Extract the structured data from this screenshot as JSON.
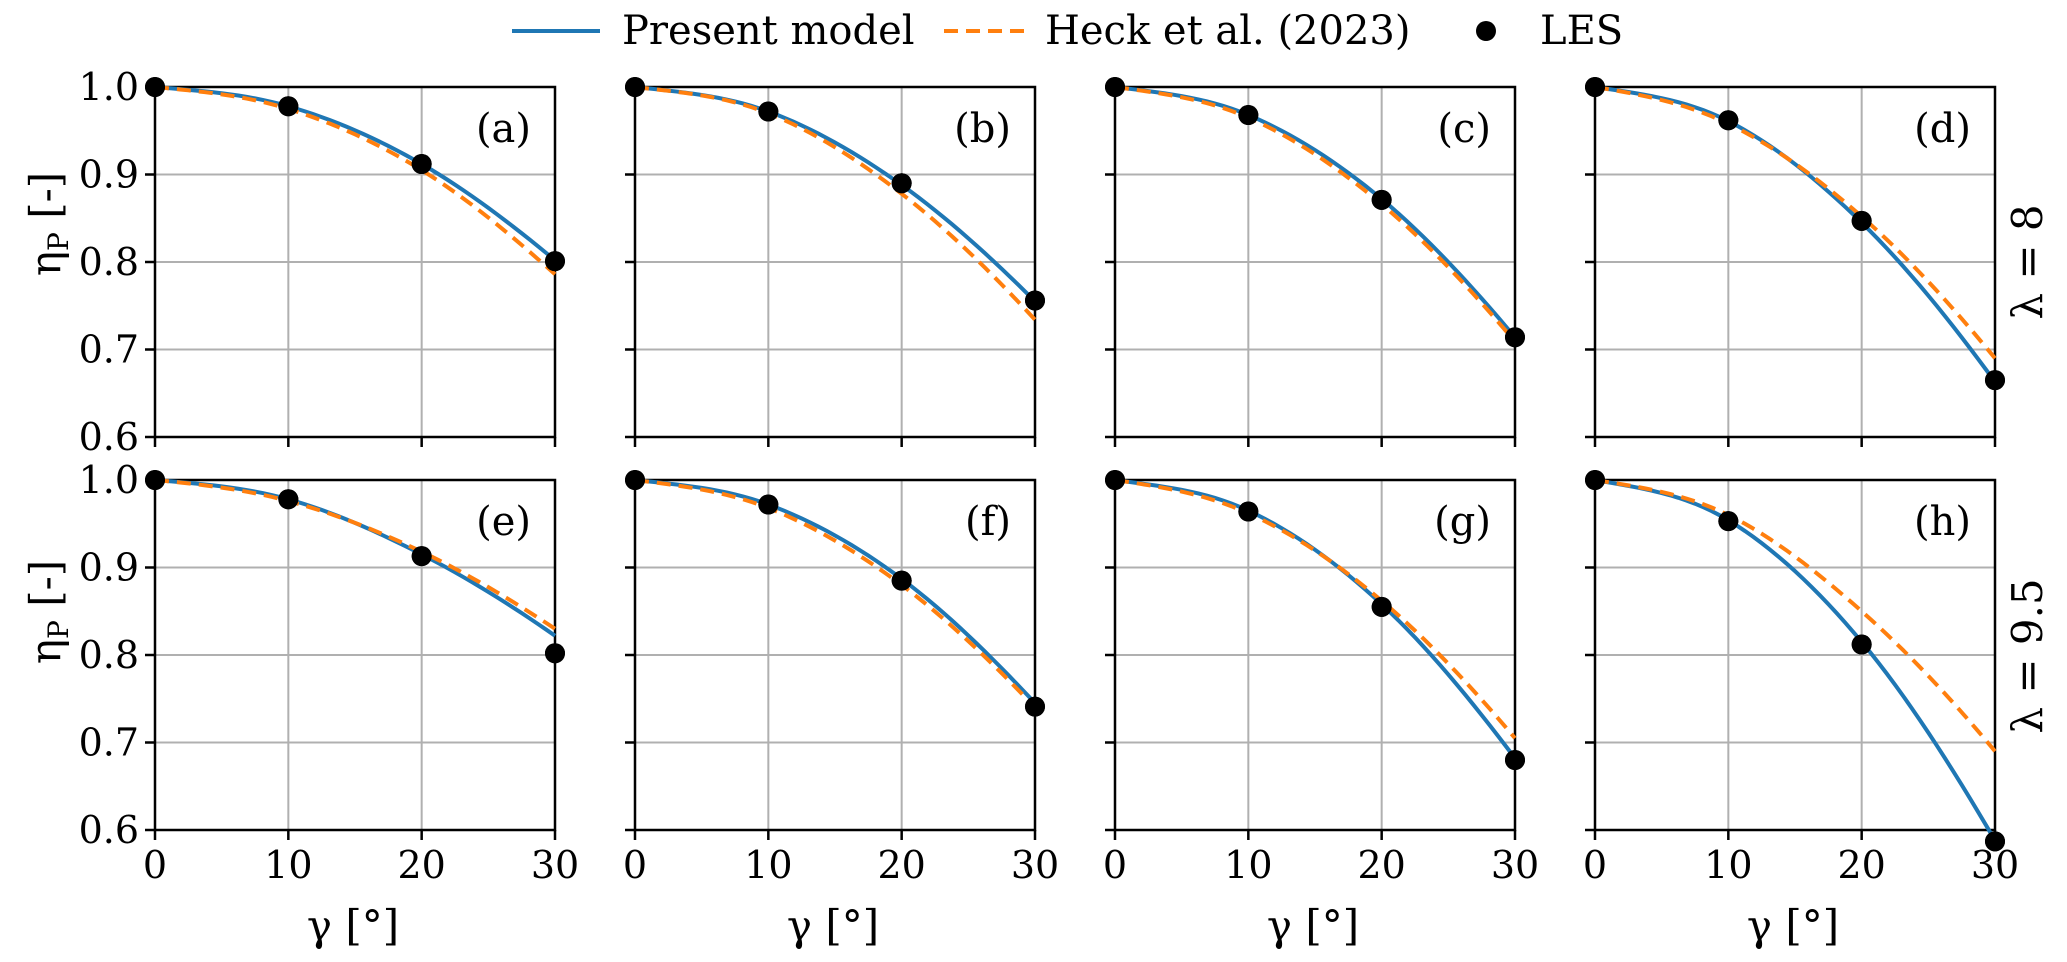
{
  "legend": {
    "items": [
      {
        "label": "Present model",
        "style": "solid-line",
        "color": "#1f77b4"
      },
      {
        "label": "Heck et al. (2023)",
        "style": "dashed-line",
        "color": "#ff7f0e"
      },
      {
        "label": "LES",
        "style": "marker",
        "color": "#000000"
      }
    ]
  },
  "axes": {
    "x_title": "γ [°]",
    "y_title_main": "η",
    "y_title_sub": "P",
    "y_title_unit": " [-]",
    "x_ticks": [
      0,
      10,
      20,
      30
    ],
    "y_ticks": [
      0.6,
      0.7,
      0.8,
      0.9,
      1.0
    ],
    "y_tick_labels": [
      "0.6",
      "0.7",
      "0.8",
      "0.9",
      "1.0"
    ],
    "x_tick_labels": [
      "0",
      "10",
      "20",
      "30"
    ]
  },
  "row_labels": [
    "λ = 8",
    "λ = 9.5"
  ],
  "chart_data": [
    {
      "type": "line",
      "panel": "(a)",
      "row": 0,
      "col": 0,
      "xlim": [
        0,
        30
      ],
      "ylim": [
        0.6,
        1.0
      ],
      "grid": true,
      "x": [
        0,
        10,
        20,
        30
      ],
      "series": [
        {
          "name": "Present model",
          "kind": "line",
          "values": [
            1.0,
            0.978,
            0.912,
            0.802
          ]
        },
        {
          "name": "Heck et al. (2023)",
          "kind": "dashed",
          "values": [
            1.0,
            0.975,
            0.905,
            0.786
          ]
        },
        {
          "name": "LES",
          "kind": "marker",
          "values": [
            1.0,
            0.978,
            0.912,
            0.801
          ]
        }
      ]
    },
    {
      "type": "line",
      "panel": "(b)",
      "row": 0,
      "col": 1,
      "xlim": [
        0,
        30
      ],
      "ylim": [
        0.6,
        1.0
      ],
      "grid": true,
      "x": [
        0,
        10,
        20,
        30
      ],
      "series": [
        {
          "name": "Present model",
          "kind": "line",
          "values": [
            1.0,
            0.972,
            0.888,
            0.755
          ]
        },
        {
          "name": "Heck et al. (2023)",
          "kind": "dashed",
          "values": [
            1.0,
            0.97,
            0.878,
            0.734
          ]
        },
        {
          "name": "LES",
          "kind": "marker",
          "values": [
            1.0,
            0.972,
            0.89,
            0.756
          ]
        }
      ]
    },
    {
      "type": "line",
      "panel": "(c)",
      "row": 0,
      "col": 2,
      "xlim": [
        0,
        30
      ],
      "ylim": [
        0.6,
        1.0
      ],
      "grid": true,
      "x": [
        0,
        10,
        20,
        30
      ],
      "series": [
        {
          "name": "Present model",
          "kind": "line",
          "values": [
            1.0,
            0.968,
            0.872,
            0.714
          ]
        },
        {
          "name": "Heck et al. (2023)",
          "kind": "dashed",
          "values": [
            1.0,
            0.965,
            0.866,
            0.709
          ]
        },
        {
          "name": "LES",
          "kind": "marker",
          "values": [
            1.0,
            0.968,
            0.871,
            0.714
          ]
        }
      ]
    },
    {
      "type": "line",
      "panel": "(d)",
      "row": 0,
      "col": 3,
      "xlim": [
        0,
        30
      ],
      "ylim": [
        0.6,
        1.0
      ],
      "grid": true,
      "x": [
        0,
        10,
        20,
        30
      ],
      "series": [
        {
          "name": "Present model",
          "kind": "line",
          "values": [
            1.0,
            0.961,
            0.845,
            0.663
          ]
        },
        {
          "name": "Heck et al. (2023)",
          "kind": "dashed",
          "values": [
            1.0,
            0.958,
            0.852,
            0.69
          ]
        },
        {
          "name": "LES",
          "kind": "marker",
          "values": [
            1.0,
            0.962,
            0.847,
            0.665
          ]
        }
      ]
    },
    {
      "type": "line",
      "panel": "(e)",
      "row": 1,
      "col": 0,
      "xlim": [
        0,
        30
      ],
      "ylim": [
        0.6,
        1.0
      ],
      "grid": true,
      "x": [
        0,
        10,
        20,
        30
      ],
      "series": [
        {
          "name": "Present model",
          "kind": "line",
          "values": [
            1.0,
            0.978,
            0.915,
            0.822
          ]
        },
        {
          "name": "Heck et al. (2023)",
          "kind": "dashed",
          "values": [
            1.0,
            0.976,
            0.918,
            0.83
          ]
        },
        {
          "name": "LES",
          "kind": "marker",
          "values": [
            1.0,
            0.978,
            0.913,
            0.802
          ]
        }
      ]
    },
    {
      "type": "line",
      "panel": "(f)",
      "row": 1,
      "col": 1,
      "xlim": [
        0,
        30
      ],
      "ylim": [
        0.6,
        1.0
      ],
      "grid": true,
      "x": [
        0,
        10,
        20,
        30
      ],
      "series": [
        {
          "name": "Present model",
          "kind": "line",
          "values": [
            1.0,
            0.972,
            0.887,
            0.745
          ]
        },
        {
          "name": "Heck et al. (2023)",
          "kind": "dashed",
          "values": [
            1.0,
            0.968,
            0.88,
            0.74
          ]
        },
        {
          "name": "LES",
          "kind": "marker",
          "values": [
            1.0,
            0.972,
            0.885,
            0.741
          ]
        }
      ]
    },
    {
      "type": "line",
      "panel": "(g)",
      "row": 1,
      "col": 2,
      "xlim": [
        0,
        30
      ],
      "ylim": [
        0.6,
        1.0
      ],
      "grid": true,
      "x": [
        0,
        10,
        20,
        30
      ],
      "series": [
        {
          "name": "Present model",
          "kind": "line",
          "values": [
            1.0,
            0.965,
            0.858,
            0.682
          ]
        },
        {
          "name": "Heck et al. (2023)",
          "kind": "dashed",
          "values": [
            1.0,
            0.962,
            0.862,
            0.705
          ]
        },
        {
          "name": "LES",
          "kind": "marker",
          "values": [
            1.0,
            0.964,
            0.855,
            0.68
          ]
        }
      ]
    },
    {
      "type": "line",
      "panel": "(h)",
      "row": 1,
      "col": 3,
      "xlim": [
        0,
        30
      ],
      "ylim": [
        0.6,
        1.0
      ],
      "grid": true,
      "x": [
        0,
        10,
        20,
        30
      ],
      "series": [
        {
          "name": "Present model",
          "kind": "line",
          "values": [
            1.0,
            0.954,
            0.815,
            0.588
          ]
        },
        {
          "name": "Heck et al. (2023)",
          "kind": "dashed",
          "values": [
            1.0,
            0.96,
            0.85,
            0.69
          ]
        },
        {
          "name": "LES",
          "kind": "marker",
          "values": [
            1.0,
            0.953,
            0.812,
            0.587
          ]
        }
      ]
    }
  ]
}
